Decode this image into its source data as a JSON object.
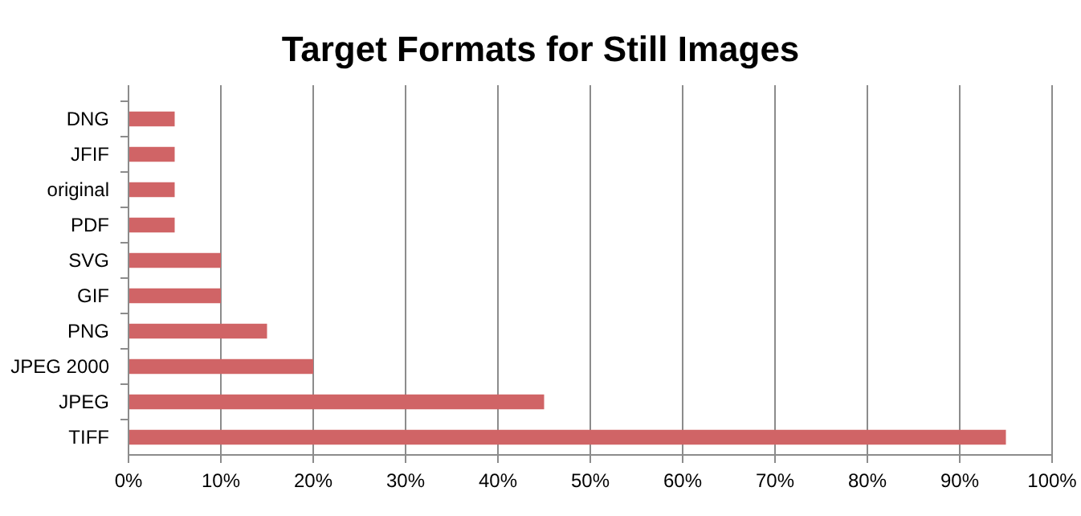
{
  "chart_data": {
    "type": "bar",
    "orientation": "horizontal",
    "title": "Target Formats for Still Images",
    "categories": [
      "DNG",
      "JFIF",
      "original",
      "PDF",
      "SVG",
      "GIF",
      "PNG",
      "JPEG 2000",
      "JPEG",
      "TIFF"
    ],
    "values": [
      5,
      5,
      5,
      5,
      10,
      10,
      15,
      20,
      45,
      95
    ],
    "color": "#d06466",
    "xlim": [
      0,
      100
    ],
    "xticks": [
      {
        "value": 0,
        "label": "0%"
      },
      {
        "value": 10,
        "label": "10%"
      },
      {
        "value": 20,
        "label": "20%"
      },
      {
        "value": 30,
        "label": "30%"
      },
      {
        "value": 40,
        "label": "40%"
      },
      {
        "value": 50,
        "label": "50%"
      },
      {
        "value": 60,
        "label": "60%"
      },
      {
        "value": 70,
        "label": "70%"
      },
      {
        "value": 80,
        "label": "80%"
      },
      {
        "value": 90,
        "label": "90%"
      },
      {
        "value": 100,
        "label": "100%"
      }
    ],
    "grid": "x"
  }
}
